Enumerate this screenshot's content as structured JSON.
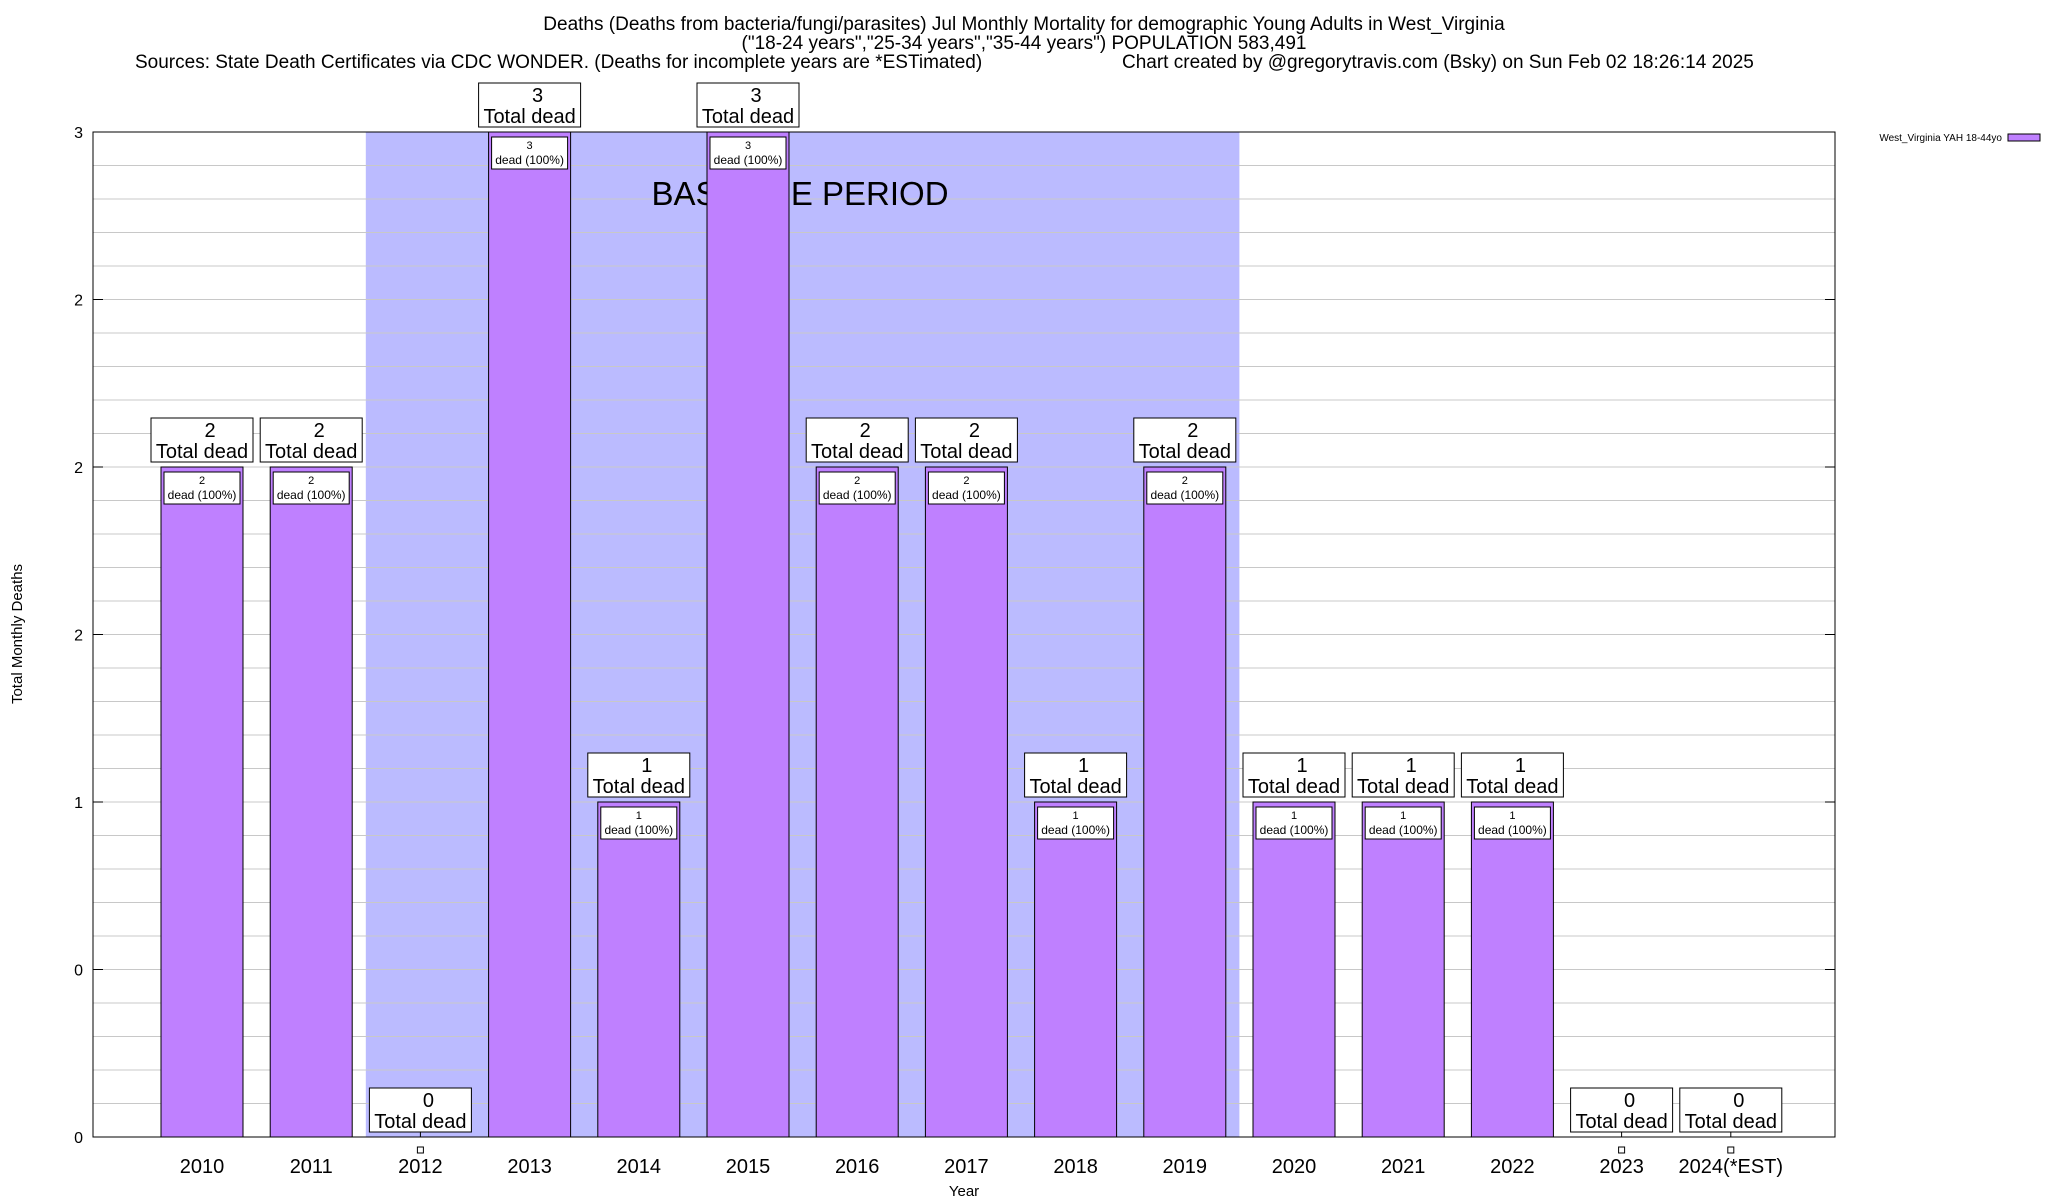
{
  "header": {
    "title_line1": "Deaths (Deaths from bacteria/fungi/parasites) Jul Monthly Mortality for demographic Young Adults in West_Virginia",
    "title_line2": "(\"18-24 years\",\"25-34 years\",\"35-44 years\") POPULATION 583,491",
    "sources": "Sources: State Death Certificates via CDC WONDER. (Deaths for incomplete years are *ESTimated)",
    "credit": "Chart created by @gregorytravis.com (Bsky) on Sun Feb 02 18:26:14 2025"
  },
  "chart_data": {
    "type": "bar",
    "xlabel": "Year",
    "ylabel": "Total Monthly Deaths",
    "ylim": [
      0,
      3
    ],
    "y_tick_labels": [
      "0",
      "0",
      "1",
      "2",
      "2",
      "2",
      "3"
    ],
    "grid": true,
    "legend_position": "top-right",
    "categories": [
      "2010",
      "2011",
      "2012",
      "2013",
      "2014",
      "2015",
      "2016",
      "2017",
      "2018",
      "2019",
      "2020",
      "2021",
      "2022",
      "2023",
      "2024(*EST)"
    ],
    "series": [
      {
        "name": "West_Virginia YAH 18-44yo",
        "color": "#bf80ff",
        "values": [
          2,
          2,
          0,
          3,
          1,
          3,
          2,
          2,
          1,
          2,
          1,
          1,
          1,
          0,
          0
        ]
      }
    ],
    "total_label_text": "Total dead",
    "segment_label_text": "dead (100%)",
    "baseline": {
      "label": "BASELINE PERIOD",
      "start": "2012",
      "end": "2019",
      "color": "#bbbbff"
    }
  }
}
